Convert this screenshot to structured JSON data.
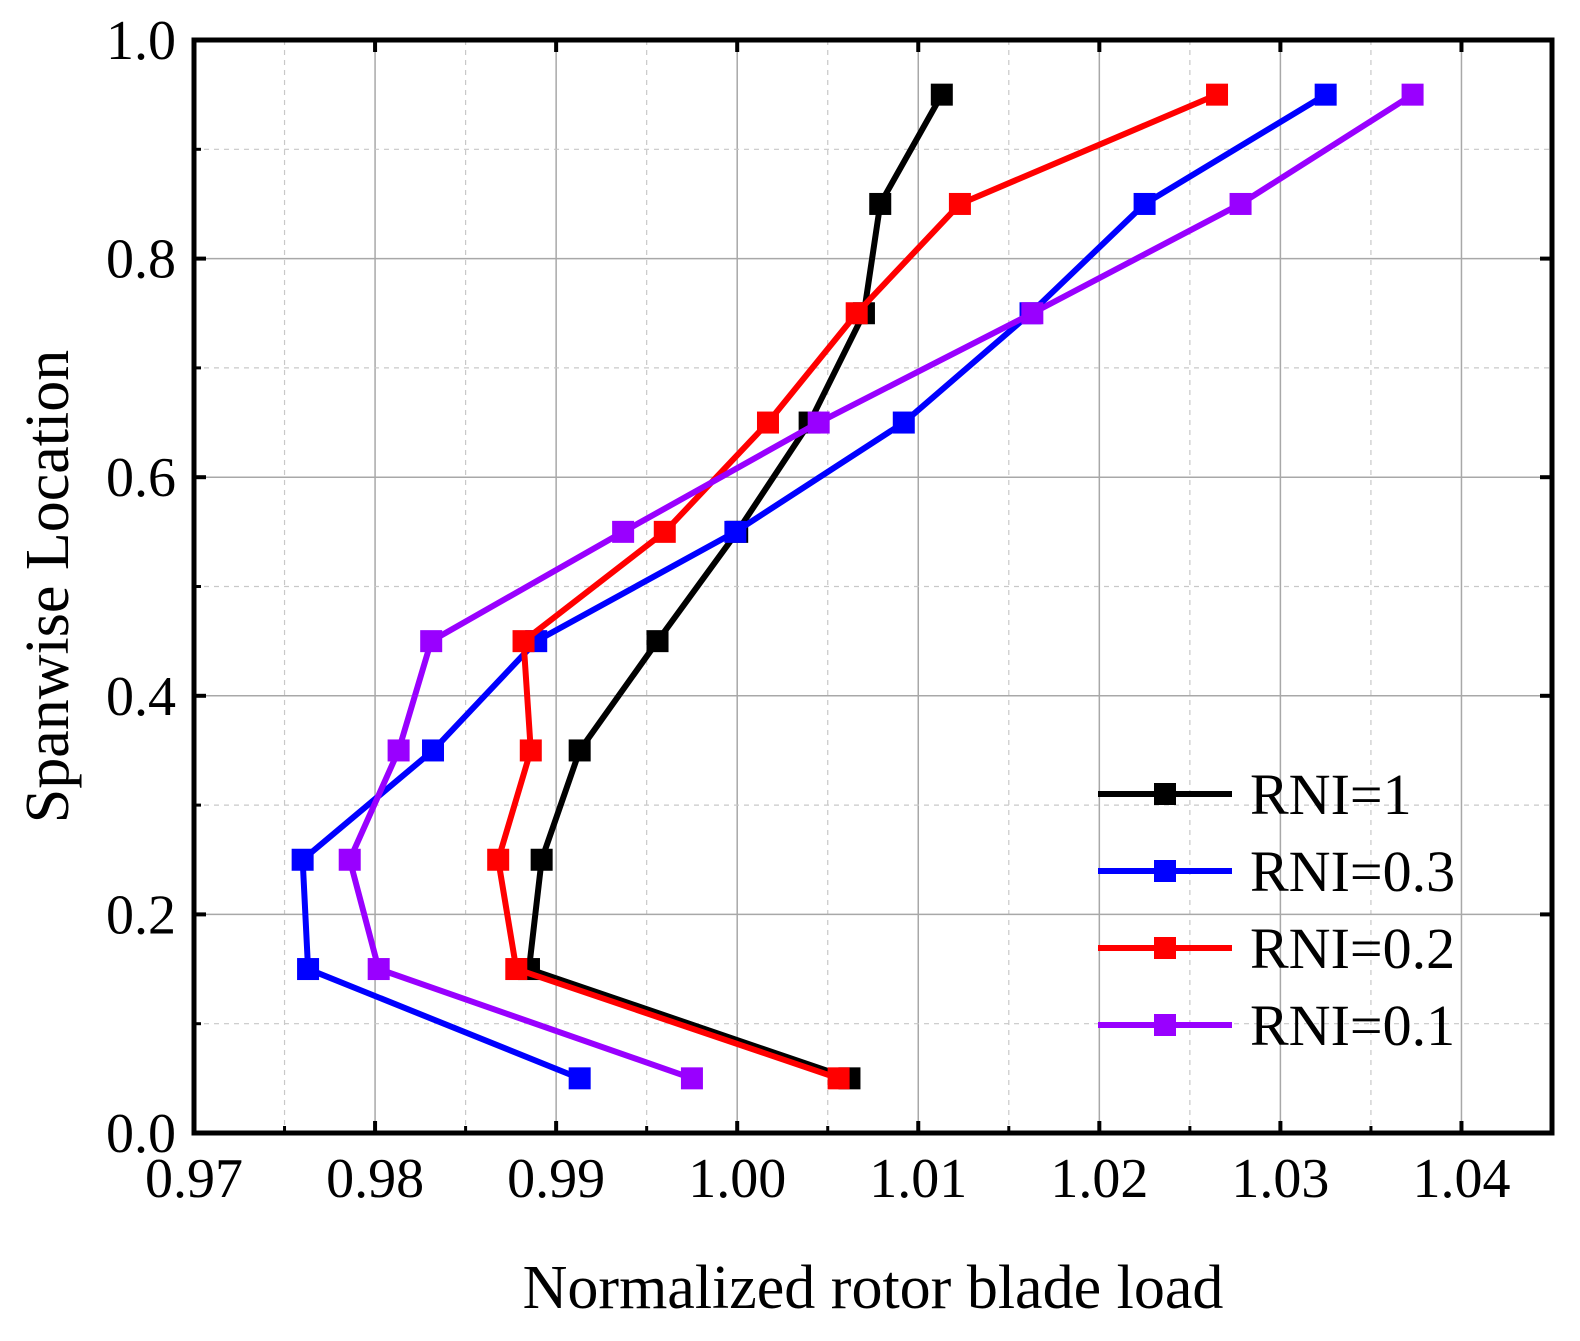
{
  "chart_data": {
    "type": "line",
    "title": "",
    "xlabel": "Normalized rotor blade load",
    "ylabel": "Spanwise Location",
    "xlim": [
      0.97,
      1.045
    ],
    "ylim": [
      0.0,
      1.0
    ],
    "xticks": [
      0.97,
      0.98,
      0.99,
      1.0,
      1.01,
      1.02,
      1.03,
      1.04
    ],
    "xtick_labels": [
      "0.97",
      "0.98",
      "0.99",
      "1.00",
      "1.01",
      "1.02",
      "1.03",
      "1.04"
    ],
    "yticks": [
      0.0,
      0.2,
      0.4,
      0.6,
      0.8,
      1.0
    ],
    "ytick_labels": [
      "0.0",
      "0.2",
      "0.4",
      "0.6",
      "0.8",
      "1.0"
    ],
    "grid": true,
    "legend_position": "bottom-right",
    "series": [
      {
        "name": "RNI=1",
        "color": "#000000",
        "points": [
          {
            "x": 1.0062,
            "y": 0.05
          },
          {
            "x": 0.9885,
            "y": 0.15
          },
          {
            "x": 0.9892,
            "y": 0.25
          },
          {
            "x": 0.9913,
            "y": 0.35
          },
          {
            "x": 0.9956,
            "y": 0.45
          },
          {
            "x": 1.0,
            "y": 0.55
          },
          {
            "x": 1.004,
            "y": 0.65
          },
          {
            "x": 1.007,
            "y": 0.75
          },
          {
            "x": 1.0079,
            "y": 0.85
          },
          {
            "x": 1.0113,
            "y": 0.95
          }
        ]
      },
      {
        "name": "RNI=0.3",
        "color": "#0000ff",
        "points": [
          {
            "x": 0.9913,
            "y": 0.05
          },
          {
            "x": 0.9763,
            "y": 0.15
          },
          {
            "x": 0.976,
            "y": 0.25
          },
          {
            "x": 0.9832,
            "y": 0.35
          },
          {
            "x": 0.9889,
            "y": 0.45
          },
          {
            "x": 0.9999,
            "y": 0.55
          },
          {
            "x": 1.0092,
            "y": 0.65
          },
          {
            "x": 1.0162,
            "y": 0.75
          },
          {
            "x": 1.0225,
            "y": 0.85
          },
          {
            "x": 1.0325,
            "y": 0.95
          }
        ]
      },
      {
        "name": "RNI=0.2",
        "color": "#ff0000",
        "points": [
          {
            "x": 1.0056,
            "y": 0.05
          },
          {
            "x": 0.9878,
            "y": 0.15
          },
          {
            "x": 0.9868,
            "y": 0.25
          },
          {
            "x": 0.9886,
            "y": 0.35
          },
          {
            "x": 0.9882,
            "y": 0.45
          },
          {
            "x": 0.996,
            "y": 0.55
          },
          {
            "x": 1.0017,
            "y": 0.65
          },
          {
            "x": 1.0066,
            "y": 0.75
          },
          {
            "x": 1.0123,
            "y": 0.85
          },
          {
            "x": 1.0265,
            "y": 0.95
          }
        ]
      },
      {
        "name": "RNI=0.1",
        "color": "#9900ff",
        "points": [
          {
            "x": 0.9975,
            "y": 0.05
          },
          {
            "x": 0.9802,
            "y": 0.15
          },
          {
            "x": 0.9786,
            "y": 0.25
          },
          {
            "x": 0.9813,
            "y": 0.35
          },
          {
            "x": 0.9831,
            "y": 0.45
          },
          {
            "x": 0.9937,
            "y": 0.55
          },
          {
            "x": 1.0045,
            "y": 0.65
          },
          {
            "x": 1.0163,
            "y": 0.75
          },
          {
            "x": 1.0278,
            "y": 0.85
          },
          {
            "x": 1.0373,
            "y": 0.95
          }
        ]
      }
    ]
  }
}
